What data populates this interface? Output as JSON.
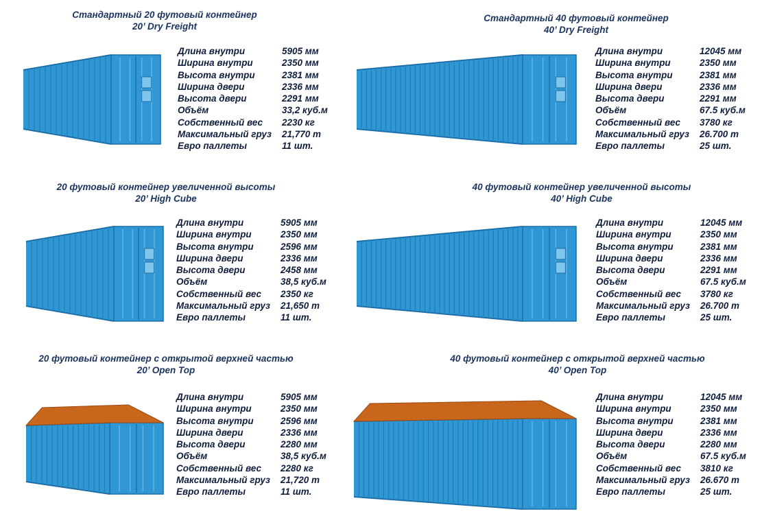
{
  "labels": [
    "Длина внутри",
    "Ширина внутри",
    "Высота внутри",
    "Ширина двери",
    "Высота двери",
    "Объём",
    "Собственный вес",
    "Максимальный груз",
    "Евро паллеты"
  ],
  "colors": {
    "container": "#2f97d3",
    "container_dark": "#1c6fa8",
    "roof_open": "#c8661c",
    "title": "#1c3560"
  },
  "containers": [
    {
      "title_ru": "Стандартный 20 футовый контейнер",
      "title_en": "20’ Dry Freight",
      "values": [
        "5905 мм",
        "2350 мм",
        "2381 мм",
        "2336 мм",
        "2291 мм",
        "33,2 куб.м",
        "2230 кг",
        "21,770 т",
        "11 шт."
      ]
    },
    {
      "title_ru": "Стандартный 40 футовый контейнер",
      "title_en": "40’ Dry Freight",
      "values": [
        "12045 мм",
        "2350 мм",
        "2381 мм",
        "2336 мм",
        "2291 мм",
        "67.5 куб.м",
        "3780 кг",
        "26.700 т",
        "25 шт."
      ]
    },
    {
      "title_ru": "20 футовый контейнер увеличенной высоты",
      "title_en": "20’ High Cube",
      "values": [
        "5905 мм",
        "2350 мм",
        "2596 мм",
        "2336 мм",
        "2458 мм",
        "38,5 куб.м",
        "2350 кг",
        "21,650 т",
        "11 шт."
      ]
    },
    {
      "title_ru": "40 футовый контейнер увеличенной высоты",
      "title_en": "40’ High Cube",
      "values": [
        "12045 мм",
        "2350 мм",
        "2381 мм",
        "2336 мм",
        "2291 мм",
        "67.5 куб.м",
        "3780 кг",
        "26.700 т",
        "25 шт."
      ]
    },
    {
      "title_ru": "20 футовый контейнер с открытой верхней частью",
      "title_en": "20’ Open Top",
      "values": [
        "5905 мм",
        "2350 мм",
        "2596 мм",
        "2336 мм",
        "2280 мм",
        "38,5 куб.м",
        "2280 кг",
        "21,720 т",
        "11 шт."
      ]
    },
    {
      "title_ru": "40 футовый контейнер с открытой верхней частью",
      "title_en": "40’ Open Top",
      "values": [
        "12045 мм",
        "2350 мм",
        "2381 мм",
        "2336 мм",
        "2280 мм",
        "67.5 куб.м",
        "3810 кг",
        "26.670 т",
        "25 шт."
      ]
    }
  ]
}
